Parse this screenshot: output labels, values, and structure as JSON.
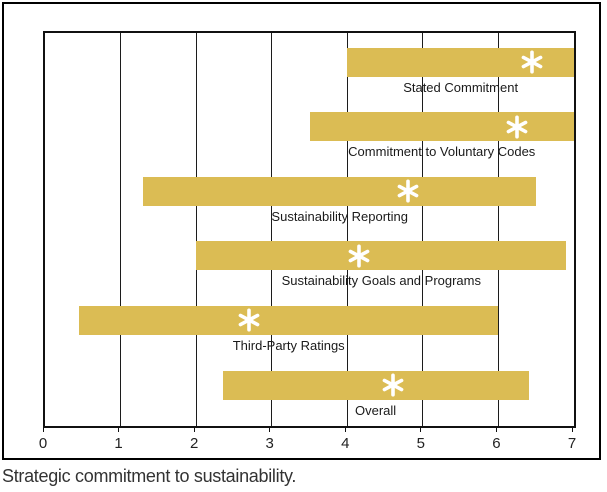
{
  "caption": "Strategic commitment to sustainability.",
  "chart_data": {
    "type": "bar",
    "subtype": "horizontal-floating-range-bars",
    "orientation": "horizontal",
    "title": "",
    "xlabel": "",
    "ylabel": "",
    "xlim": [
      0,
      7
    ],
    "xticks": [
      0,
      1,
      2,
      3,
      4,
      5,
      6,
      7
    ],
    "grid": "vertical",
    "bar_color": "#dbbc54",
    "marker_color": "#ffffff",
    "marker_shape": "asterisk",
    "categories": [
      "Stated Commitment",
      "Commitment to Voluntary Codes",
      "Sustainability Reporting",
      "Sustainability Goals and Programs",
      "Third-Party Ratings",
      "Overall"
    ],
    "series": [
      {
        "name": "range_min",
        "values": [
          4.0,
          3.5,
          1.3,
          2.0,
          0.45,
          2.35
        ]
      },
      {
        "name": "range_max",
        "values": [
          7.0,
          7.0,
          6.5,
          6.9,
          6.0,
          6.4
        ]
      },
      {
        "name": "mean_marker",
        "values": [
          6.45,
          6.25,
          4.8,
          4.15,
          2.7,
          4.6
        ]
      }
    ],
    "caption": "Strategic commitment to sustainability."
  }
}
